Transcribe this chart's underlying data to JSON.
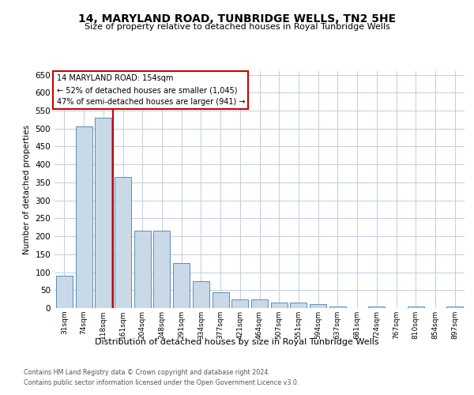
{
  "title": "14, MARYLAND ROAD, TUNBRIDGE WELLS, TN2 5HE",
  "subtitle": "Size of property relative to detached houses in Royal Tunbridge Wells",
  "xlabel": "Distribution of detached houses by size in Royal Tunbridge Wells",
  "ylabel": "Number of detached properties",
  "footnote1": "Contains HM Land Registry data © Crown copyright and database right 2024.",
  "footnote2": "Contains public sector information licensed under the Open Government Licence v3.0.",
  "annotation_title": "14 MARYLAND ROAD: 154sqm",
  "annotation_line1": "← 52% of detached houses are smaller (1,045)",
  "annotation_line2": "47% of semi-detached houses are larger (941) →",
  "bar_labels": [
    "31sqm",
    "74sqm",
    "118sqm",
    "161sqm",
    "204sqm",
    "248sqm",
    "291sqm",
    "334sqm",
    "377sqm",
    "421sqm",
    "464sqm",
    "507sqm",
    "551sqm",
    "594sqm",
    "637sqm",
    "681sqm",
    "724sqm",
    "767sqm",
    "810sqm",
    "854sqm",
    "897sqm"
  ],
  "bar_values": [
    90,
    505,
    530,
    365,
    215,
    215,
    125,
    75,
    45,
    25,
    25,
    15,
    15,
    10,
    5,
    0,
    5,
    0,
    5,
    0,
    5
  ],
  "bar_color": "#c9d9e8",
  "bar_edge_color": "#5b8db8",
  "marker_color": "#cc0000",
  "ylim": [
    0,
    660
  ],
  "yticks": [
    0,
    50,
    100,
    150,
    200,
    250,
    300,
    350,
    400,
    450,
    500,
    550,
    600,
    650
  ],
  "background_color": "#ffffff",
  "grid_color": "#c0cfe0"
}
